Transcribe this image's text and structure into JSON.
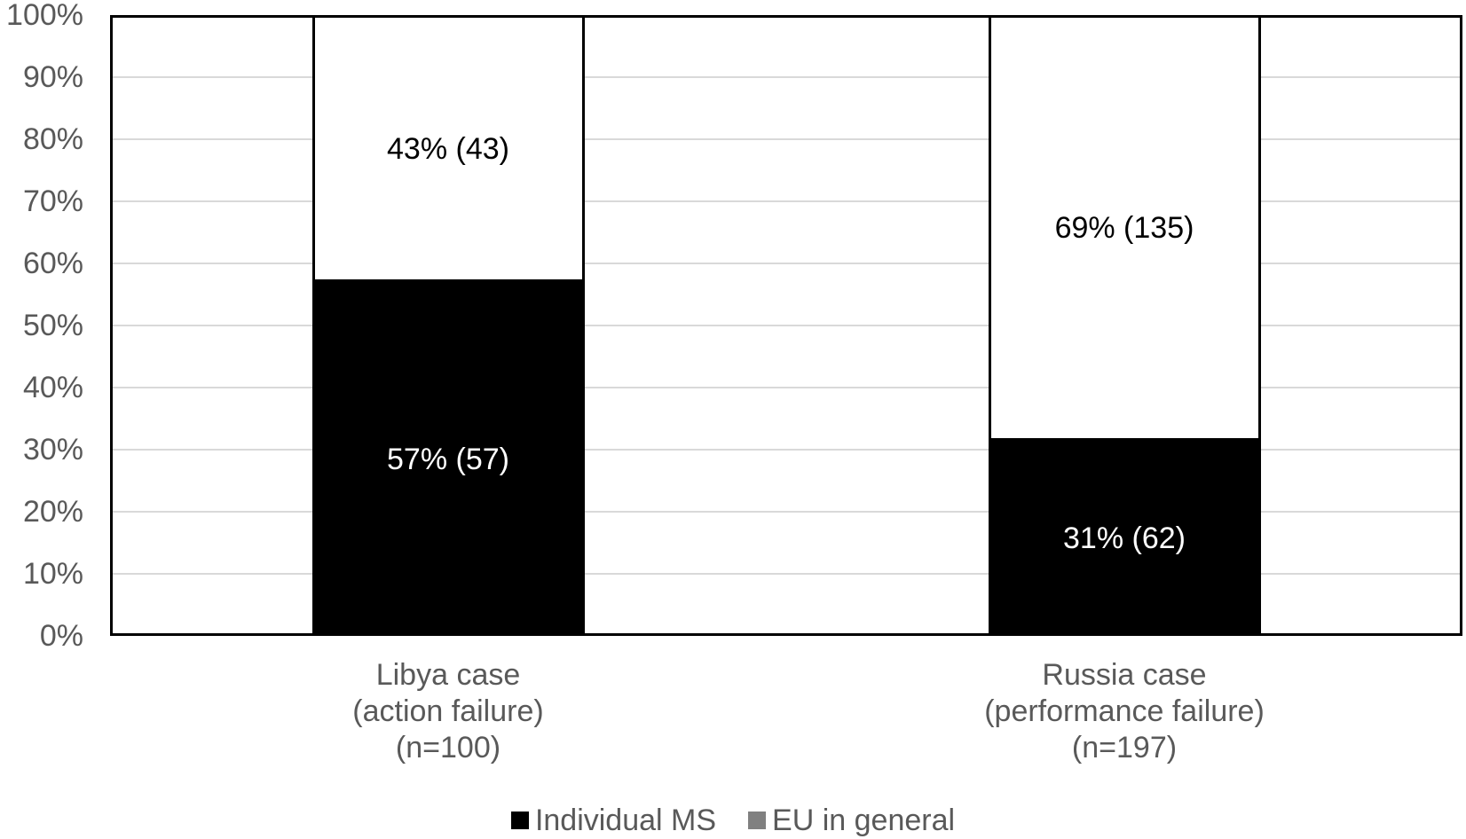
{
  "chart_data": {
    "type": "bar",
    "subtype": "100-percent-stacked-column",
    "title": "",
    "xlabel": "",
    "ylabel": "",
    "categories": [
      {
        "lines": [
          "Libya case",
          "(action failure)",
          "(n=100)"
        ],
        "n": 100
      },
      {
        "lines": [
          "Russia case",
          "(performance failure)",
          "(n=197)"
        ],
        "n": 197
      }
    ],
    "series": [
      {
        "name": "Individual MS",
        "stack_position": "bottom",
        "fill": "#000000",
        "swatch": "#000000",
        "label_color": "#ffffff",
        "counts": [
          57,
          62
        ],
        "percents": [
          57,
          31
        ],
        "labels": [
          "57% (57)",
          "31% (62)"
        ]
      },
      {
        "name": "EU in general",
        "stack_position": "top",
        "fill": "#ffffff",
        "swatch": "#808080",
        "label_color": "#000000",
        "counts": [
          43,
          135
        ],
        "percents": [
          43,
          69
        ],
        "labels": [
          "43% (43)",
          "69% (135)"
        ]
      }
    ],
    "y_axis": {
      "ticks": [
        "100%",
        "90%",
        "80%",
        "70%",
        "60%",
        "50%",
        "40%",
        "30%",
        "20%",
        "10%",
        "0%"
      ],
      "min": 0,
      "max": 100,
      "tick_step_percent": 10
    },
    "grid": {
      "horizontal": true,
      "vertical": false,
      "color": "#d9d9d9"
    },
    "legend": {
      "position": "bottom",
      "items": [
        {
          "label": "Individual MS",
          "color": "#000000"
        },
        {
          "label": "EU in general",
          "color": "#808080"
        }
      ]
    },
    "colors": {
      "axis_text": "#595959",
      "plot_border": "#000000",
      "background": "#ffffff"
    }
  }
}
